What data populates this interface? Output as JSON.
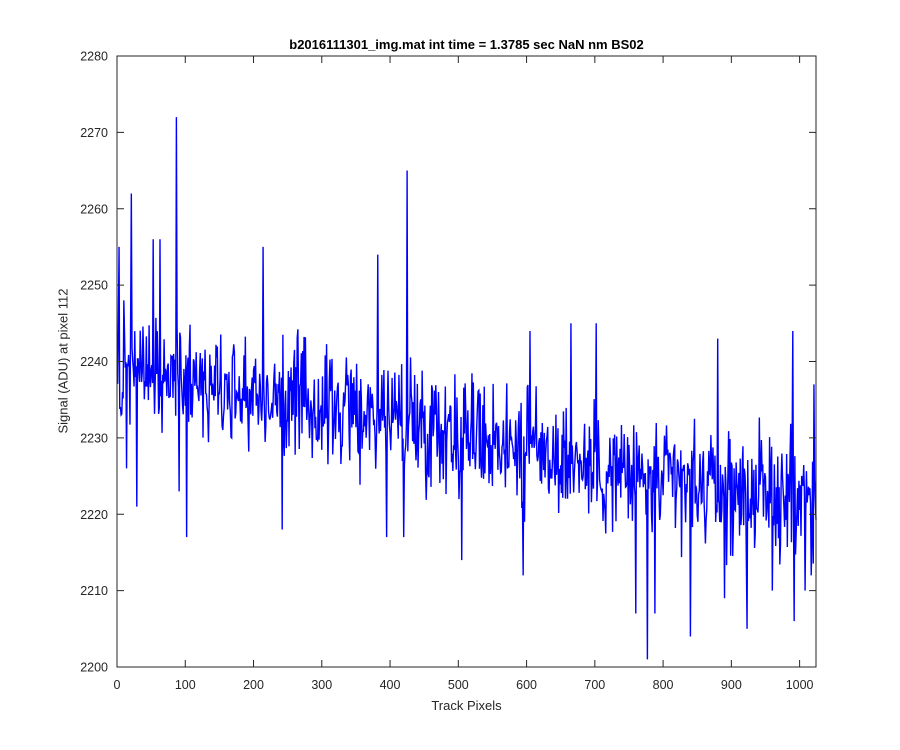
{
  "chart_data": {
    "type": "line",
    "title": "b2016111301_img.mat int time = 1.3785 sec  NaN nm BS02",
    "xlabel": "Track Pixels",
    "ylabel": "Signal (ADU) at pixel 112",
    "xlim": [
      0,
      1024
    ],
    "ylim": [
      2200,
      2280
    ],
    "xticks": [
      0,
      100,
      200,
      300,
      400,
      500,
      600,
      700,
      800,
      900,
      1000
    ],
    "yticks": [
      2200,
      2210,
      2220,
      2230,
      2240,
      2250,
      2260,
      2270,
      2280
    ],
    "grid": false,
    "legend": "none",
    "series": [
      {
        "color": "#0000ff",
        "trend_anchors": {
          "x": [
            0,
            100,
            200,
            300,
            400,
            500,
            600,
            700,
            800,
            900,
            1024
          ],
          "y": [
            2239,
            2238,
            2236,
            2234,
            2233,
            2231,
            2229,
            2226,
            2224,
            2223,
            2222
          ]
        },
        "noise_amplitude": 7,
        "points": [
          {
            "x": 3,
            "y": 2255
          },
          {
            "x": 6,
            "y": 2233
          },
          {
            "x": 10,
            "y": 2248
          },
          {
            "x": 14,
            "y": 2226
          },
          {
            "x": 21,
            "y": 2262
          },
          {
            "x": 29,
            "y": 2221
          },
          {
            "x": 53,
            "y": 2256
          },
          {
            "x": 63,
            "y": 2256
          },
          {
            "x": 87,
            "y": 2272
          },
          {
            "x": 91,
            "y": 2223
          },
          {
            "x": 102,
            "y": 2217
          },
          {
            "x": 214,
            "y": 2255
          },
          {
            "x": 242,
            "y": 2218
          },
          {
            "x": 382,
            "y": 2254
          },
          {
            "x": 395,
            "y": 2217
          },
          {
            "x": 420,
            "y": 2217
          },
          {
            "x": 425,
            "y": 2265
          },
          {
            "x": 505,
            "y": 2214
          },
          {
            "x": 595,
            "y": 2212
          },
          {
            "x": 597,
            "y": 2219
          },
          {
            "x": 605,
            "y": 2244
          },
          {
            "x": 665,
            "y": 2245
          },
          {
            "x": 702,
            "y": 2245
          },
          {
            "x": 760,
            "y": 2207
          },
          {
            "x": 777,
            "y": 2201
          },
          {
            "x": 788,
            "y": 2207
          },
          {
            "x": 840,
            "y": 2204
          },
          {
            "x": 880,
            "y": 2243
          },
          {
            "x": 890,
            "y": 2209
          },
          {
            "x": 923,
            "y": 2205
          },
          {
            "x": 960,
            "y": 2210
          },
          {
            "x": 990,
            "y": 2244
          },
          {
            "x": 992,
            "y": 2206
          },
          {
            "x": 1008,
            "y": 2210
          },
          {
            "x": 1017,
            "y": 2212
          },
          {
            "x": 1021,
            "y": 2237
          }
        ]
      }
    ]
  }
}
